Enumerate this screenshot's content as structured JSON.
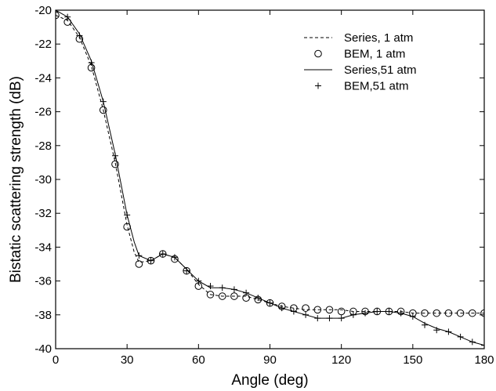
{
  "chart_data": {
    "type": "line",
    "title": "",
    "xlabel": "Angle (deg)",
    "ylabel": "Bistatic scattering strength (dB)",
    "xlim": [
      0,
      180
    ],
    "ylim": [
      -40,
      -20
    ],
    "xticks": [
      0,
      30,
      60,
      90,
      120,
      150,
      180
    ],
    "yticks": [
      -40,
      -38,
      -36,
      -34,
      -32,
      -30,
      -28,
      -26,
      -24,
      -22,
      -20
    ],
    "grid": false,
    "legend_position": "top-right",
    "series": [
      {
        "name": "Series, 1 atm",
        "style": "dashed-line",
        "x": [
          0,
          5,
          10,
          15,
          20,
          25,
          30,
          33,
          35,
          40,
          45,
          50,
          55,
          60,
          65,
          70,
          75,
          80,
          85,
          90,
          95,
          100,
          105,
          110,
          115,
          120,
          125,
          130,
          135,
          140,
          145,
          150,
          155,
          160,
          165,
          170,
          175,
          180
        ],
        "y": [
          -20.3,
          -20.6,
          -21.6,
          -23.3,
          -25.9,
          -29.0,
          -32.7,
          -34.3,
          -34.9,
          -34.8,
          -34.4,
          -34.6,
          -35.3,
          -36.2,
          -36.8,
          -36.9,
          -36.9,
          -36.9,
          -37.1,
          -37.3,
          -37.5,
          -37.6,
          -37.7,
          -37.7,
          -37.7,
          -37.7,
          -37.8,
          -37.8,
          -37.8,
          -37.8,
          -37.8,
          -37.9,
          -37.9,
          -37.9,
          -37.9,
          -37.9,
          -37.9,
          -37.9
        ]
      },
      {
        "name": "BEM, 1 atm",
        "style": "circle-markers",
        "x": [
          0,
          5,
          10,
          15,
          20,
          25,
          30,
          35,
          40,
          45,
          50,
          55,
          60,
          65,
          70,
          75,
          80,
          85,
          90,
          95,
          100,
          105,
          110,
          115,
          120,
          125,
          130,
          135,
          140,
          145,
          150,
          155,
          160,
          165,
          170,
          175,
          180
        ],
        "y": [
          -20.3,
          -20.7,
          -21.7,
          -23.4,
          -25.9,
          -29.1,
          -32.8,
          -35.0,
          -34.8,
          -34.4,
          -34.7,
          -35.4,
          -36.3,
          -36.8,
          -36.9,
          -36.9,
          -37.0,
          -37.1,
          -37.3,
          -37.5,
          -37.6,
          -37.6,
          -37.7,
          -37.7,
          -37.8,
          -37.8,
          -37.8,
          -37.8,
          -37.8,
          -37.8,
          -37.9,
          -37.9,
          -37.9,
          -37.9,
          -37.9,
          -37.9,
          -37.9
        ]
      },
      {
        "name": "Series,51 atm",
        "style": "solid-line",
        "x": [
          0,
          5,
          10,
          15,
          20,
          25,
          30,
          33,
          35,
          40,
          45,
          50,
          55,
          60,
          65,
          70,
          75,
          80,
          85,
          90,
          95,
          100,
          105,
          110,
          115,
          120,
          125,
          130,
          135,
          140,
          145,
          150,
          155,
          160,
          165,
          170,
          175,
          180
        ],
        "y": [
          -20.0,
          -20.4,
          -21.4,
          -23.0,
          -25.4,
          -28.5,
          -32.1,
          -33.7,
          -34.5,
          -34.8,
          -34.4,
          -34.6,
          -35.3,
          -36.0,
          -36.4,
          -36.4,
          -36.5,
          -36.7,
          -37.0,
          -37.3,
          -37.6,
          -37.8,
          -38.0,
          -38.2,
          -38.2,
          -38.2,
          -38.0,
          -37.9,
          -37.8,
          -37.8,
          -37.9,
          -38.1,
          -38.5,
          -38.8,
          -39.0,
          -39.3,
          -39.6,
          -39.8
        ]
      },
      {
        "name": "BEM,51 atm",
        "style": "plus-markers",
        "x": [
          0,
          5,
          10,
          15,
          20,
          25,
          30,
          35,
          40,
          45,
          50,
          55,
          60,
          65,
          70,
          75,
          80,
          85,
          90,
          95,
          100,
          105,
          110,
          115,
          120,
          125,
          130,
          135,
          140,
          145,
          150,
          155,
          160,
          165,
          170,
          175,
          180
        ],
        "y": [
          -20.1,
          -20.4,
          -21.5,
          -23.1,
          -25.4,
          -28.6,
          -32.1,
          -34.5,
          -34.8,
          -34.4,
          -34.6,
          -35.4,
          -36.0,
          -36.3,
          -36.4,
          -36.5,
          -36.7,
          -37.0,
          -37.3,
          -37.6,
          -37.8,
          -38.0,
          -38.2,
          -38.2,
          -38.2,
          -38.0,
          -37.9,
          -37.8,
          -37.8,
          -37.9,
          -38.1,
          -38.6,
          -38.9,
          -39.0,
          -39.3,
          -39.6,
          -39.8
        ]
      }
    ]
  }
}
